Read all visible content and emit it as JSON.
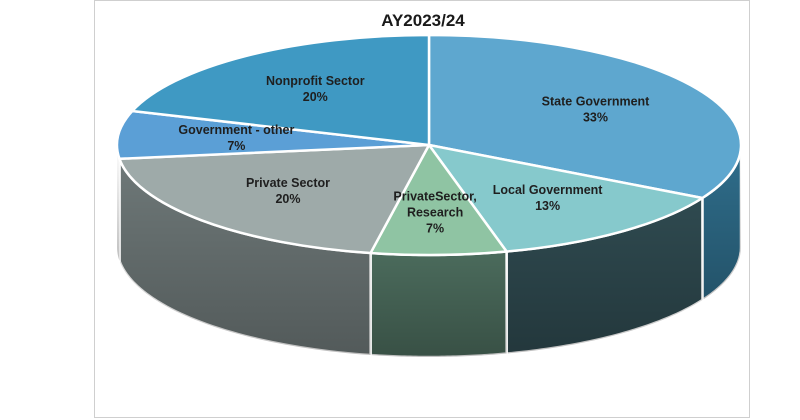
{
  "chart_data": {
    "type": "pie",
    "title": "AY2023/24",
    "slices": [
      {
        "label": "State Government",
        "label_lines": [
          "State Government"
        ],
        "value": 33,
        "value_label": "33%",
        "color": "#5ea7cf",
        "side_color": "#2f6e8c"
      },
      {
        "label": "Local Government",
        "label_lines": [
          "Local Government"
        ],
        "value": 13,
        "value_label": "13%",
        "color": "#86c9cc",
        "side_color": "#2f4a50"
      },
      {
        "label": "PrivateSector, Research",
        "label_lines": [
          "PrivateSector,",
          "Research"
        ],
        "value": 7,
        "value_label": "7%",
        "color": "#8fc4a3",
        "side_color": "#4b6b5c"
      },
      {
        "label": "Private Sector",
        "label_lines": [
          "Private Sector"
        ],
        "value": 20,
        "value_label": "20%",
        "color": "#9eaaa9",
        "side_color": "#6e7878"
      },
      {
        "label": "Government - other",
        "label_lines": [
          "Government - other"
        ],
        "value": 7,
        "value_label": "7%",
        "color": "#5b9fd6",
        "side_color": "#3c6e96"
      },
      {
        "label": "Nonprofit Sector",
        "label_lines": [
          "Nonprofit Sector"
        ],
        "value": 20,
        "value_label": "20%",
        "color": "#3f99c3",
        "side_color": "#2a6d8c"
      }
    ],
    "start_angle": "12 o'clock",
    "direction": "clockwise",
    "legend": "none"
  }
}
